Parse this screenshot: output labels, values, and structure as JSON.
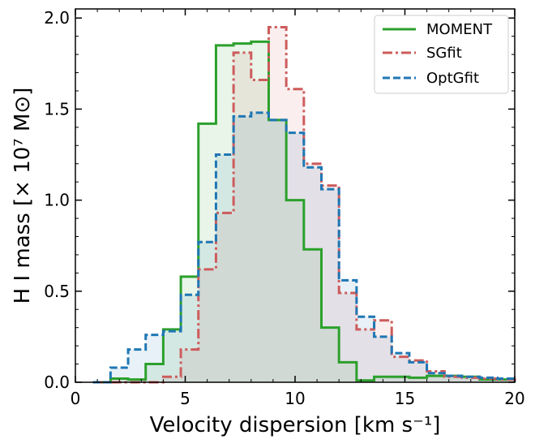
{
  "chart_data": {
    "type": "histogram-step",
    "title": "",
    "xlabel": "Velocity dispersion [km s⁻¹]",
    "ylabel": "H I mass [× 10⁷ M⊙]",
    "xlim": [
      0,
      20
    ],
    "ylim": [
      0,
      2.05
    ],
    "xticks": [
      0,
      5,
      10,
      15,
      20
    ],
    "yticks": [
      0.0,
      0.5,
      1.0,
      1.5,
      2.0
    ],
    "xtick_labels": [
      "0",
      "5",
      "10",
      "15",
      "20"
    ],
    "ytick_labels": [
      "0.0",
      "0.5",
      "1.0",
      "1.5",
      "2.0"
    ],
    "bin_edges": [
      0.8,
      1.6,
      2.4,
      3.2,
      4.0,
      4.8,
      5.6,
      6.4,
      7.2,
      8.0,
      8.8,
      9.6,
      10.4,
      11.2,
      12.0,
      12.8,
      13.6,
      14.4,
      15.2,
      16.0,
      16.8,
      17.6,
      18.4,
      19.2,
      20.0
    ],
    "series": [
      {
        "name": "MOMENT",
        "color": "#2ca02c",
        "style": "solid",
        "values": [
          0,
          0.02,
          0.015,
          0.1,
          0.29,
          0.58,
          1.42,
          1.85,
          1.86,
          1.87,
          1.44,
          1.0,
          0.73,
          0.3,
          0.11,
          0.01,
          0.03,
          0.03,
          0.025,
          0.035,
          0.035,
          0.03,
          0.015,
          0.015
        ]
      },
      {
        "name": "SGfit",
        "color": "#cd5c5c",
        "style": "dashdot",
        "values": [
          0,
          0,
          0,
          0,
          0.03,
          0.18,
          0.62,
          0.93,
          1.81,
          1.66,
          1.95,
          1.61,
          1.2,
          1.08,
          0.49,
          0.29,
          0.34,
          0.14,
          0.12,
          0.06,
          0.03,
          0.025,
          0.02,
          0.015
        ]
      },
      {
        "name": "OptGfit",
        "color": "#1f77b4",
        "style": "dashed",
        "values": [
          0,
          0.08,
          0.18,
          0.26,
          0.28,
          0.48,
          0.77,
          1.25,
          1.46,
          1.48,
          1.44,
          1.37,
          1.18,
          1.06,
          0.56,
          0.36,
          0.25,
          0.16,
          0.11,
          0.05,
          0.035,
          0.03,
          0.025,
          0.02
        ]
      }
    ],
    "legend_position": "top-right"
  }
}
